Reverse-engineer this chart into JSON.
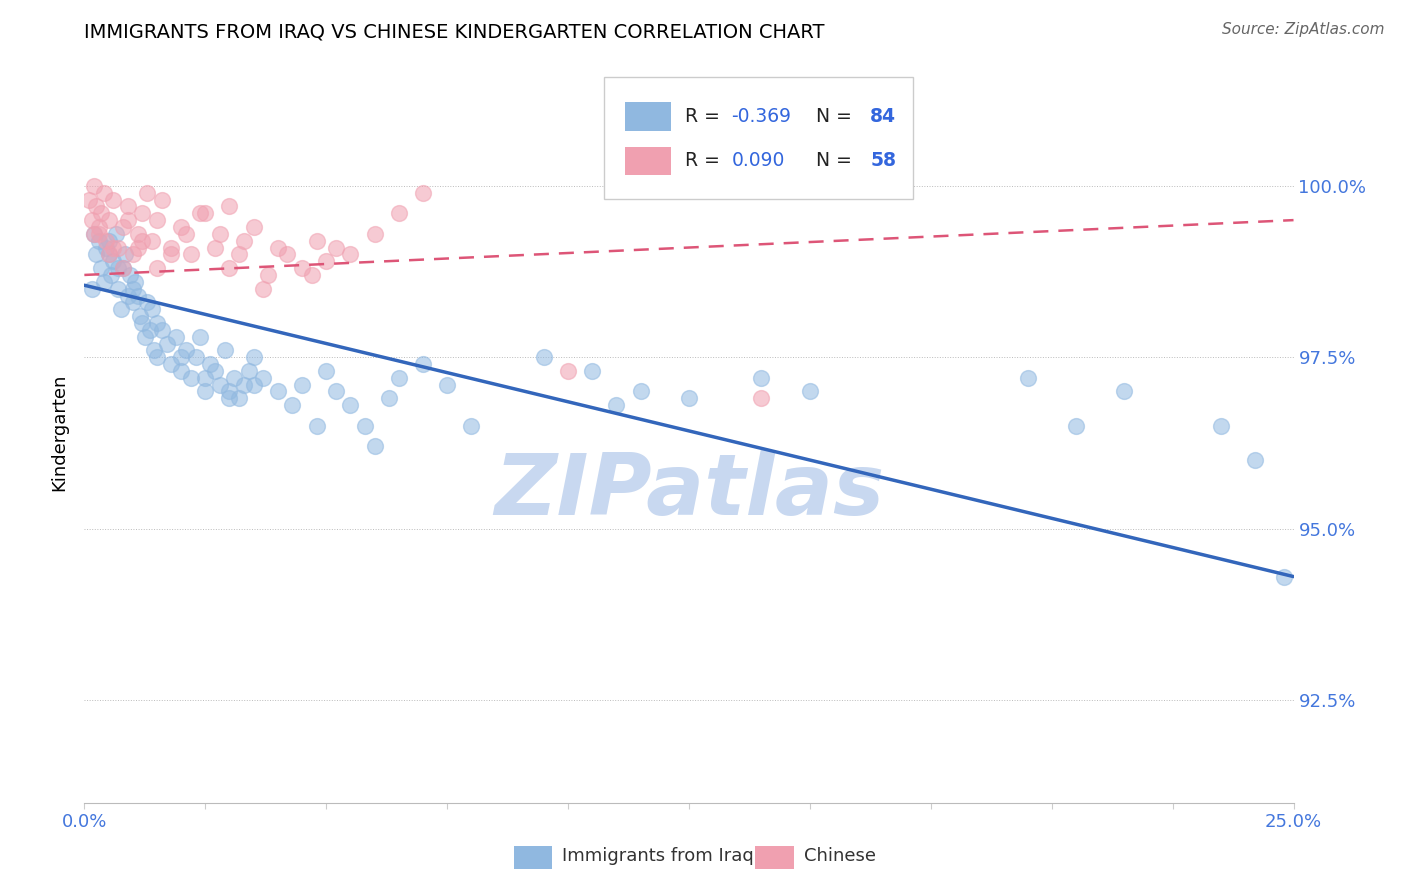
{
  "title": "IMMIGRANTS FROM IRAQ VS CHINESE KINDERGARTEN CORRELATION CHART",
  "source": "Source: ZipAtlas.com",
  "ylabel": "Kindergarten",
  "xlim": [
    0.0,
    25.0
  ],
  "ylim": [
    91.0,
    101.8
  ],
  "yticks": [
    92.5,
    95.0,
    97.5,
    100.0
  ],
  "ytick_labels": [
    "92.5%",
    "95.0%",
    "97.5%",
    "100.0%"
  ],
  "xtick_labels_show": [
    "0.0%",
    "25.0%"
  ],
  "blue_R": -0.369,
  "blue_N": 84,
  "pink_R": 0.09,
  "pink_N": 58,
  "blue_color": "#90B8E0",
  "pink_color": "#F0A0B0",
  "blue_line_color": "#3366BB",
  "pink_line_color": "#DD5577",
  "watermark_color": "#C8D8F0",
  "tick_color": "#4477DD",
  "blue_line_y0": 98.55,
  "blue_line_y1": 94.3,
  "pink_line_y0": 98.7,
  "pink_line_y1": 99.5,
  "blue_scatter_x": [
    0.15,
    0.2,
    0.25,
    0.3,
    0.35,
    0.4,
    0.45,
    0.5,
    0.55,
    0.6,
    0.65,
    0.7,
    0.75,
    0.8,
    0.85,
    0.9,
    0.95,
    1.0,
    1.05,
    1.1,
    1.15,
    1.2,
    1.25,
    1.3,
    1.35,
    1.4,
    1.45,
    1.5,
    1.6,
    1.7,
    1.8,
    1.9,
    2.0,
    2.1,
    2.2,
    2.3,
    2.4,
    2.5,
    2.6,
    2.7,
    2.8,
    2.9,
    3.0,
    3.1,
    3.2,
    3.3,
    3.4,
    3.5,
    3.7,
    4.0,
    4.3,
    4.5,
    4.8,
    5.0,
    5.2,
    5.5,
    5.8,
    6.0,
    6.3,
    6.5,
    7.0,
    7.5,
    8.0,
    9.5,
    10.5,
    11.0,
    11.5,
    12.5,
    14.0,
    15.0,
    19.5,
    20.5,
    21.5,
    23.5,
    24.2,
    24.8,
    0.5,
    0.7,
    1.0,
    1.5,
    2.0,
    2.5,
    3.0,
    3.5
  ],
  "blue_scatter_y": [
    98.5,
    99.3,
    99.0,
    99.2,
    98.8,
    98.6,
    99.1,
    99.0,
    98.7,
    98.9,
    99.3,
    98.5,
    98.2,
    98.8,
    99.0,
    98.4,
    98.7,
    98.3,
    98.6,
    98.4,
    98.1,
    98.0,
    97.8,
    98.3,
    97.9,
    98.2,
    97.6,
    97.5,
    97.9,
    97.7,
    97.4,
    97.8,
    97.3,
    97.6,
    97.2,
    97.5,
    97.8,
    97.0,
    97.4,
    97.3,
    97.1,
    97.6,
    97.0,
    97.2,
    96.9,
    97.1,
    97.3,
    97.5,
    97.2,
    97.0,
    96.8,
    97.1,
    96.5,
    97.3,
    97.0,
    96.8,
    96.5,
    96.2,
    96.9,
    97.2,
    97.4,
    97.1,
    96.5,
    97.5,
    97.3,
    96.8,
    97.0,
    96.9,
    97.2,
    97.0,
    97.2,
    96.5,
    97.0,
    96.5,
    96.0,
    94.3,
    99.2,
    98.8,
    98.5,
    98.0,
    97.5,
    97.2,
    96.9,
    97.1
  ],
  "pink_scatter_x": [
    0.1,
    0.15,
    0.2,
    0.25,
    0.3,
    0.35,
    0.4,
    0.45,
    0.5,
    0.6,
    0.7,
    0.8,
    0.9,
    1.0,
    1.1,
    1.2,
    1.3,
    1.4,
    1.5,
    1.6,
    1.8,
    2.0,
    2.2,
    2.5,
    2.8,
    3.0,
    3.2,
    3.5,
    3.8,
    4.0,
    4.5,
    4.8,
    5.0,
    5.5,
    6.0,
    6.5,
    7.0,
    0.3,
    0.6,
    0.9,
    1.2,
    1.5,
    1.8,
    2.1,
    2.4,
    2.7,
    3.0,
    3.3,
    3.7,
    4.2,
    4.7,
    5.2,
    10.0,
    14.0,
    0.2,
    0.5,
    0.8,
    1.1
  ],
  "pink_scatter_y": [
    99.8,
    99.5,
    100.0,
    99.7,
    99.3,
    99.6,
    99.9,
    99.2,
    99.5,
    99.8,
    99.1,
    99.4,
    99.7,
    99.0,
    99.3,
    99.6,
    99.9,
    99.2,
    99.5,
    99.8,
    99.1,
    99.4,
    99.0,
    99.6,
    99.3,
    99.7,
    99.0,
    99.4,
    98.7,
    99.1,
    98.8,
    99.2,
    98.9,
    99.0,
    99.3,
    99.6,
    99.9,
    99.4,
    99.1,
    99.5,
    99.2,
    98.8,
    99.0,
    99.3,
    99.6,
    99.1,
    98.8,
    99.2,
    98.5,
    99.0,
    98.7,
    99.1,
    97.3,
    96.9,
    99.3,
    99.0,
    98.8,
    99.1
  ]
}
